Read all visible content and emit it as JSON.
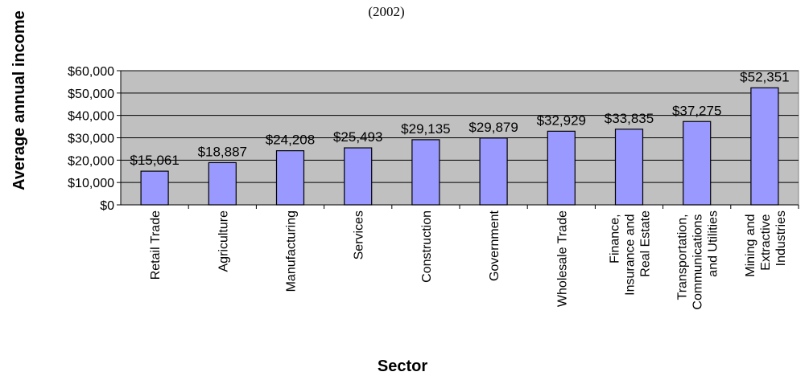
{
  "chart_data": {
    "type": "bar",
    "title": "(2002)",
    "y_label": "Average annual income",
    "x_label": "Sector",
    "categories": [
      "Retail Trade",
      "Agriculture",
      "Manufacturing",
      "Services",
      "Construction",
      "Government",
      "Wholesale Trade",
      "Finance, Insurance and Real Estate",
      "Transportation, Communications and Utilities",
      "Mining and Extractive Industries"
    ],
    "values": [
      15061,
      18887,
      24208,
      25493,
      29135,
      29879,
      32929,
      33835,
      37275,
      52351
    ],
    "value_labels": [
      "$15,061",
      "$18,887",
      "$24,208",
      "$25,493",
      "$29,135",
      "$29,879",
      "$32,929",
      "$33,835",
      "$37,275",
      "$52,351"
    ],
    "color": "#9999ff",
    "ylim": [
      0,
      60000
    ],
    "yticks": [
      {
        "value": 0,
        "label": "$0"
      },
      {
        "value": 10000,
        "label": "$10,000"
      },
      {
        "value": 20000,
        "label": "$20,000"
      },
      {
        "value": 30000,
        "label": "$30,000"
      },
      {
        "value": 40000,
        "label": "$40,000"
      },
      {
        "value": 50000,
        "label": "$50,000"
      },
      {
        "value": 60000,
        "label": "$60,000"
      }
    ],
    "grid": true
  }
}
